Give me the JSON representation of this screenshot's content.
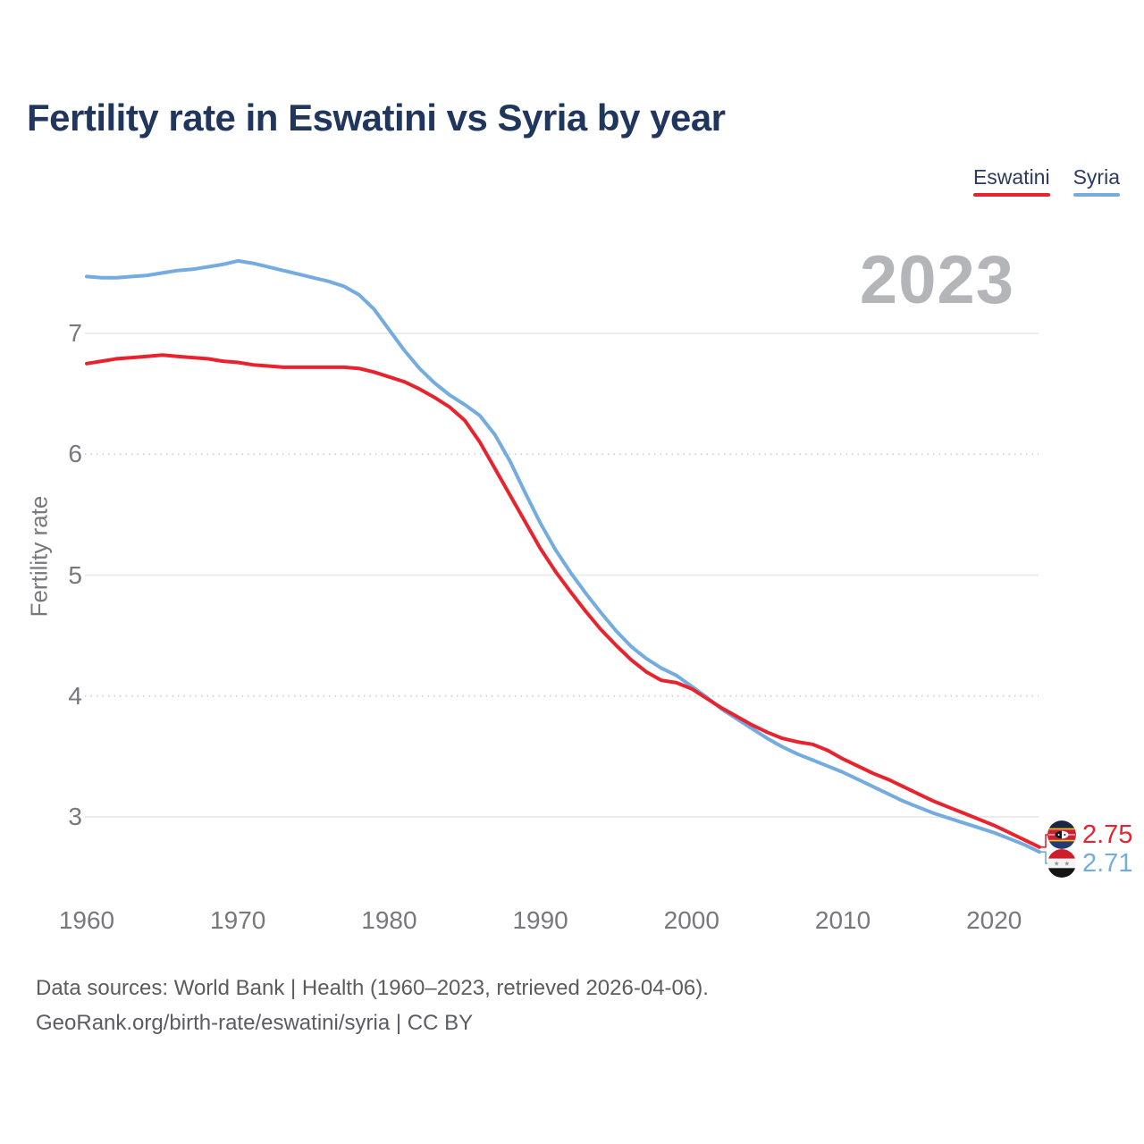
{
  "header": {
    "title": "Fertility rate in Eswatini vs Syria by year"
  },
  "legend": {
    "items": [
      {
        "label": "Eswatini",
        "color": "#e8232d"
      },
      {
        "label": "Syria",
        "color": "#74acdf"
      }
    ]
  },
  "watermark": {
    "year": "2023"
  },
  "axes": {
    "y": {
      "title": "Fertility rate",
      "ticks": [
        7,
        6,
        5,
        4,
        3
      ]
    },
    "x": {
      "ticks": [
        1960,
        1970,
        1980,
        1990,
        2000,
        2010,
        2020
      ]
    }
  },
  "end_labels": {
    "eswatini": {
      "value": "2.75",
      "flag": "eswatini-flag"
    },
    "syria": {
      "value": "2.71",
      "flag": "syria-flag"
    }
  },
  "footer": {
    "line1": "Data sources: World Bank | Health (1960–2023, retrieved 2026-04-06).",
    "line2": "GeoRank.org/birth-rate/eswatini/syria | CC BY"
  },
  "chart_data": {
    "type": "line",
    "title": "Fertility rate in Eswatini vs Syria by year",
    "xlabel": "",
    "ylabel": "Fertility rate",
    "xlim": [
      1960,
      2023
    ],
    "ylim": [
      2.6,
      7.8
    ],
    "xticks": [
      1960,
      1970,
      1980,
      1990,
      2000,
      2010,
      2020
    ],
    "yticks": [
      3,
      4,
      5,
      6,
      7
    ],
    "grid": "horizontal",
    "legend_position": "top-right",
    "watermark_year": "2023",
    "x": [
      1960,
      1961,
      1962,
      1963,
      1964,
      1965,
      1966,
      1967,
      1968,
      1969,
      1970,
      1971,
      1972,
      1973,
      1974,
      1975,
      1976,
      1977,
      1978,
      1979,
      1980,
      1981,
      1982,
      1983,
      1984,
      1985,
      1986,
      1987,
      1988,
      1989,
      1990,
      1991,
      1992,
      1993,
      1994,
      1995,
      1996,
      1997,
      1998,
      1999,
      2000,
      2001,
      2002,
      2003,
      2004,
      2005,
      2006,
      2007,
      2008,
      2009,
      2010,
      2011,
      2012,
      2013,
      2014,
      2015,
      2016,
      2017,
      2018,
      2019,
      2020,
      2021,
      2022,
      2023
    ],
    "series": [
      {
        "name": "Eswatini",
        "color": "#e8232d",
        "end_value": 2.75,
        "values": [
          6.75,
          6.77,
          6.79,
          6.8,
          6.81,
          6.82,
          6.81,
          6.8,
          6.79,
          6.77,
          6.76,
          6.74,
          6.73,
          6.72,
          6.72,
          6.72,
          6.72,
          6.72,
          6.71,
          6.68,
          6.64,
          6.6,
          6.54,
          6.47,
          6.39,
          6.28,
          6.1,
          5.88,
          5.66,
          5.44,
          5.22,
          5.03,
          4.86,
          4.7,
          4.55,
          4.42,
          4.3,
          4.2,
          4.13,
          4.11,
          4.06,
          3.98,
          3.9,
          3.83,
          3.76,
          3.7,
          3.65,
          3.62,
          3.6,
          3.55,
          3.48,
          3.42,
          3.36,
          3.31,
          3.25,
          3.19,
          3.13,
          3.08,
          3.03,
          2.98,
          2.93,
          2.87,
          2.81,
          2.75
        ]
      },
      {
        "name": "Syria",
        "color": "#74acdf",
        "end_value": 2.71,
        "values": [
          7.47,
          7.46,
          7.46,
          7.47,
          7.48,
          7.5,
          7.52,
          7.53,
          7.55,
          7.57,
          7.6,
          7.58,
          7.55,
          7.52,
          7.49,
          7.46,
          7.43,
          7.39,
          7.32,
          7.2,
          7.03,
          6.86,
          6.71,
          6.59,
          6.49,
          6.41,
          6.32,
          6.16,
          5.94,
          5.68,
          5.43,
          5.21,
          5.02,
          4.85,
          4.69,
          4.54,
          4.41,
          4.31,
          4.23,
          4.17,
          4.08,
          3.99,
          3.89,
          3.81,
          3.73,
          3.65,
          3.58,
          3.52,
          3.47,
          3.42,
          3.37,
          3.31,
          3.25,
          3.19,
          3.13,
          3.08,
          3.03,
          2.99,
          2.95,
          2.91,
          2.87,
          2.82,
          2.77,
          2.71
        ]
      }
    ]
  }
}
